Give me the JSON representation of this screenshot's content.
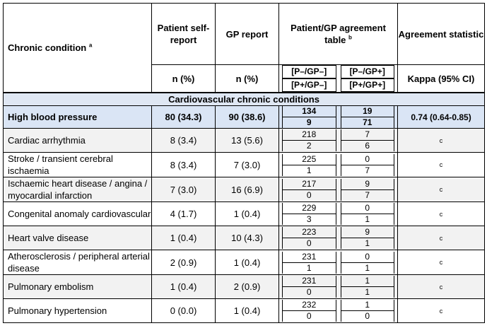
{
  "header": {
    "condition": "Chronic condition",
    "condition_sup": "a",
    "self_report": "Patient self-report",
    "gp_report": "GP report",
    "agreement_table": "Patient/GP agreement table",
    "agreement_sup": "b",
    "agreement_statistic": "Agreement statistic",
    "n_pct_1": "n (%)",
    "n_pct_2": "n (%)",
    "cell_tl": "[P–/GP–]",
    "cell_tr": "[P–/GP+]",
    "cell_bl": "[P+/GP–]",
    "cell_br": "[P+/GP+]",
    "kappa": "Kappa (95% CI)"
  },
  "section_title": "Cardiovascular chronic conditions",
  "rows": [
    {
      "condition": "High blood pressure",
      "self": "80 (34.3)",
      "gp": "90 (38.6)",
      "a": "134",
      "b": "19",
      "c": "9",
      "d": "71",
      "kappa": "0.74 (0.64-0.85)"
    },
    {
      "condition": "Cardiac arrhythmia",
      "self": "8 (3.4)",
      "gp": "13 (5.6)",
      "a": "218",
      "b": "7",
      "c": "2",
      "d": "6",
      "kappa": "c"
    },
    {
      "condition": "Stroke / transient cerebral ischaemia",
      "self": "8 (3.4)",
      "gp": "7 (3.0)",
      "a": "225",
      "b": "0",
      "c": "1",
      "d": "7",
      "kappa": "c"
    },
    {
      "condition": "Ischaemic heart disease / angina / myocardial infarction",
      "self": "7 (3.0)",
      "gp": "16 (6.9)",
      "a": "217",
      "b": "9",
      "c": "0",
      "d": "7",
      "kappa": "c"
    },
    {
      "condition": "Congenital anomaly cardiovascular",
      "self": "4 (1.7)",
      "gp": "1 (0.4)",
      "a": "229",
      "b": "0",
      "c": "3",
      "d": "1",
      "kappa": "c"
    },
    {
      "condition": "Heart valve disease",
      "self": "1 (0.4)",
      "gp": "10 (4.3)",
      "a": "223",
      "b": "9",
      "c": "0",
      "d": "1",
      "kappa": "c"
    },
    {
      "condition": "Atherosclerosis / peripheral arterial disease",
      "self": "2 (0.9)",
      "gp": "1 (0.4)",
      "a": "231",
      "b": "0",
      "c": "1",
      "d": "1",
      "kappa": "c"
    },
    {
      "condition": "Pulmonary embolism",
      "self": "1 (0.4)",
      "gp": "2 (0.9)",
      "a": "231",
      "b": "1",
      "c": "0",
      "d": "1",
      "kappa": "c"
    },
    {
      "condition": "Pulmonary hypertension",
      "self": "0 (0.0)",
      "gp": "1 (0.4)",
      "a": "232",
      "b": "1",
      "c": "0",
      "d": "0",
      "kappa": "c"
    }
  ]
}
